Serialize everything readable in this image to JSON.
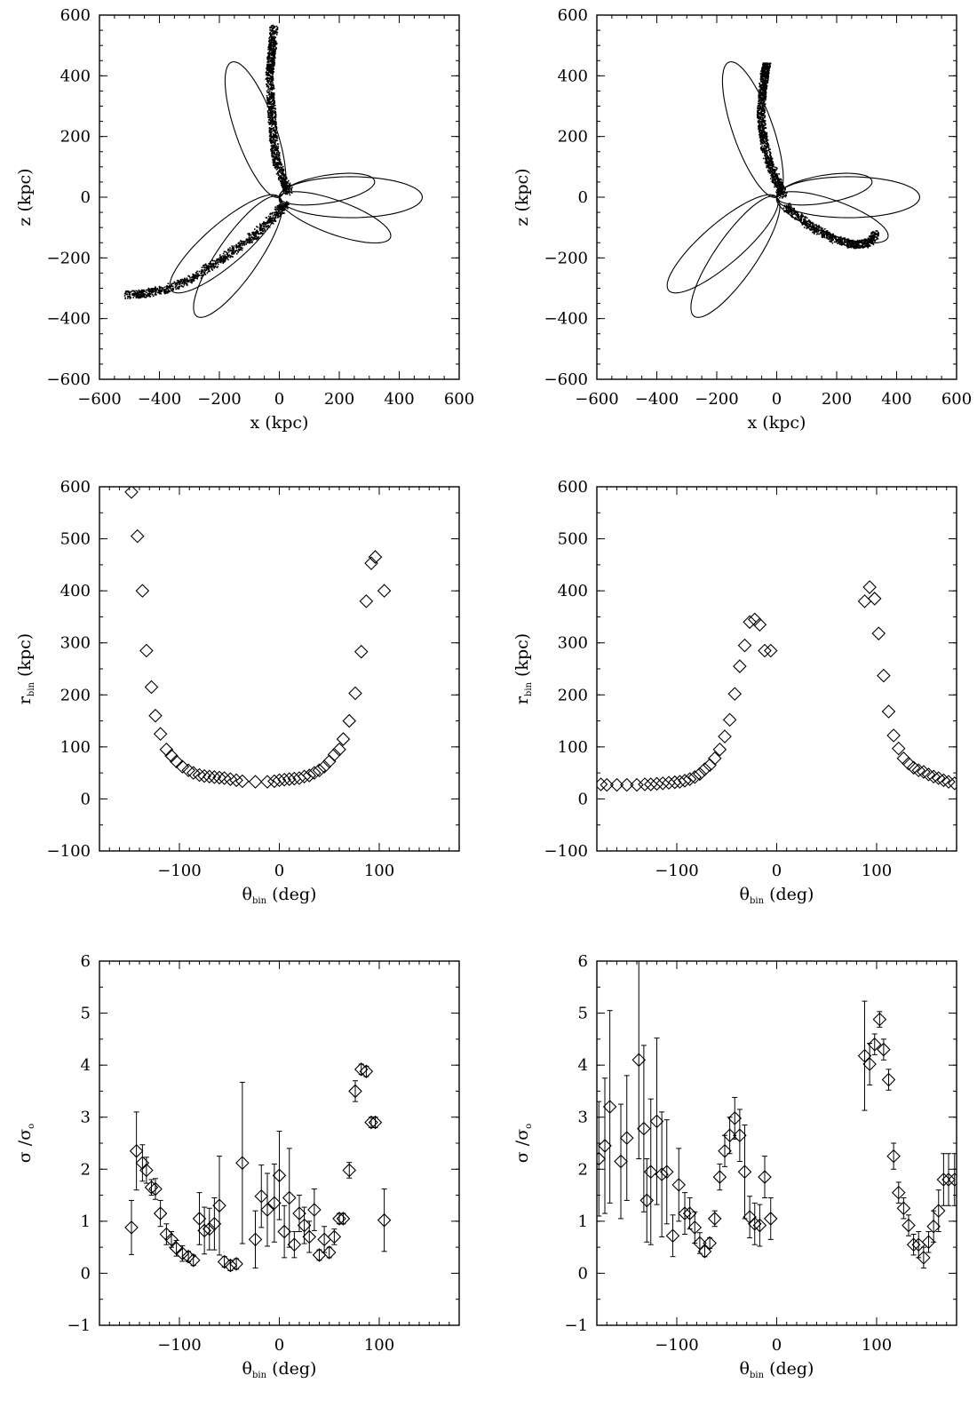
{
  "chart_data": [
    {
      "id": "p1",
      "type": "scatter",
      "xlabel": "x (kpc)",
      "ylabel": "z (kpc)",
      "xlim": [
        -600,
        600
      ],
      "ylim": [
        -600,
        600
      ],
      "xticks": [
        "-600",
        "-400",
        "-200",
        "0",
        "200",
        "400",
        "600"
      ],
      "yticks": [
        "-600",
        "-400",
        "-200",
        "0",
        "200",
        "400",
        "600"
      ],
      "orbit_apocenters": [
        [
          -150,
          420
        ],
        [
          450,
          0
        ],
        [
          -260,
          -370
        ],
        [
          350,
          -125
        ],
        [
          -340,
          -290
        ],
        [
          300,
          50
        ]
      ],
      "stream_path": [
        [
          30,
          20
        ],
        [
          10,
          60
        ],
        [
          -10,
          120
        ],
        [
          -20,
          180
        ],
        [
          -25,
          250
        ],
        [
          -30,
          320
        ],
        [
          -35,
          400
        ],
        [
          -30,
          450
        ],
        [
          -25,
          500
        ],
        [
          -20,
          560
        ],
        [
          20,
          -20
        ],
        [
          -20,
          -60
        ],
        [
          -80,
          -120
        ],
        [
          -150,
          -170
        ],
        [
          -220,
          -220
        ],
        [
          -300,
          -270
        ],
        [
          -380,
          -300
        ],
        [
          -450,
          -315
        ],
        [
          -510,
          -320
        ]
      ]
    },
    {
      "id": "p2",
      "type": "scatter",
      "xlabel": "x (kpc)",
      "ylabel": "z (kpc)",
      "xlim": [
        -600,
        600
      ],
      "ylim": [
        -600,
        600
      ],
      "xticks": [
        "-600",
        "-400",
        "-200",
        "0",
        "200",
        "400",
        "600"
      ],
      "yticks": [
        "-600",
        "-400",
        "-200",
        "0",
        "200",
        "400",
        "600"
      ],
      "orbit_apocenters": [
        [
          -150,
          420
        ],
        [
          450,
          0
        ],
        [
          -260,
          -370
        ],
        [
          350,
          -125
        ],
        [
          -340,
          -290
        ],
        [
          300,
          50
        ]
      ],
      "stream_path": [
        [
          20,
          10
        ],
        [
          0,
          50
        ],
        [
          -20,
          100
        ],
        [
          -40,
          160
        ],
        [
          -50,
          220
        ],
        [
          -55,
          280
        ],
        [
          -50,
          340
        ],
        [
          -45,
          390
        ],
        [
          -40,
          420
        ],
        [
          -35,
          440
        ],
        [
          30,
          -30
        ],
        [
          80,
          -70
        ],
        [
          140,
          -110
        ],
        [
          200,
          -140
        ],
        [
          260,
          -155
        ],
        [
          300,
          -150
        ],
        [
          330,
          -120
        ]
      ]
    },
    {
      "id": "p3",
      "type": "scatter",
      "xlabel": "θ",
      "xlabel_sub": "bin",
      "xlabel_rest": " (deg)",
      "ylabel": "r",
      "ylabel_sub": "bin",
      "ylabel_rest": " (kpc)",
      "xlim": [
        -180,
        180
      ],
      "ylim": [
        -100,
        600
      ],
      "xticks": [
        "-100",
        "0",
        "100"
      ],
      "yticks": [
        "-100",
        "0",
        "100",
        "200",
        "300",
        "400",
        "500",
        "600"
      ],
      "x": [
        -148,
        -142,
        -137,
        -133,
        -128,
        -124,
        -119,
        -113,
        -108,
        -103,
        -97,
        -91,
        -86,
        -80,
        -75,
        -70,
        -65,
        -60,
        -55,
        -49,
        -43,
        -37,
        -24,
        -12,
        -5,
        0,
        5,
        10,
        15,
        20,
        25,
        30,
        35,
        40,
        45,
        50,
        55,
        60,
        64,
        70,
        76,
        82,
        87,
        92,
        96,
        105
      ],
      "y": [
        590,
        505,
        400,
        285,
        215,
        160,
        125,
        95,
        83,
        72,
        62,
        55,
        50,
        46,
        44,
        43,
        42,
        41,
        40,
        38,
        36,
        34,
        33,
        33,
        34,
        36,
        37,
        38,
        39,
        40,
        43,
        45,
        50,
        55,
        62,
        72,
        85,
        95,
        115,
        150,
        203,
        283,
        380,
        453,
        465,
        400
      ]
    },
    {
      "id": "p4",
      "type": "scatter",
      "xlabel": "θ",
      "xlabel_sub": "bin",
      "xlabel_rest": " (deg)",
      "ylabel": "r",
      "ylabel_sub": "bin",
      "ylabel_rest": " (kpc)",
      "xlim": [
        -180,
        180
      ],
      "ylim": [
        -100,
        600
      ],
      "xticks": [
        "-100",
        "0",
        "100"
      ],
      "yticks": [
        "-100",
        "0",
        "100",
        "200",
        "300",
        "400",
        "500",
        "600"
      ],
      "x": [
        -176,
        -170,
        -160,
        -150,
        -140,
        -132,
        -126,
        -120,
        -114,
        -108,
        -102,
        -97,
        -92,
        -87,
        -82,
        -77,
        -72,
        -67,
        -62,
        -57,
        -52,
        -47,
        -42,
        -37,
        -32,
        -27,
        -22,
        -17,
        -12,
        -6,
        88,
        93,
        98,
        102,
        107,
        112,
        117,
        122,
        127,
        132,
        137,
        142,
        147,
        152,
        157,
        162,
        167,
        172,
        178
      ],
      "y": [
        28,
        27,
        27,
        27,
        27,
        28,
        28,
        29,
        30,
        31,
        32,
        33,
        35,
        38,
        42,
        48,
        57,
        65,
        78,
        95,
        120,
        152,
        202,
        255,
        295,
        340,
        345,
        335,
        285,
        285,
        380,
        407,
        385,
        318,
        237,
        168,
        122,
        97,
        78,
        68,
        60,
        55,
        52,
        47,
        43,
        40,
        36,
        33,
        30
      ]
    },
    {
      "id": "p5",
      "type": "scatter",
      "xlabel": "θ",
      "xlabel_sub": "bin",
      "xlabel_rest": " (deg)",
      "ylabel": "σ /σ",
      "ylabel_sub": "o",
      "ylabel_rest": "",
      "xlim": [
        -180,
        180
      ],
      "ylim": [
        -1,
        6
      ],
      "xticks": [
        "-100",
        "0",
        "100"
      ],
      "yticks": [
        "-1",
        "0",
        "1",
        "2",
        "3",
        "4",
        "5",
        "6"
      ],
      "x": [
        -148,
        -143,
        -137,
        -133,
        -128,
        -124,
        -119,
        -113,
        -108,
        -103,
        -97,
        -91,
        -86,
        -80,
        -75,
        -70,
        -65,
        -60,
        -55,
        -49,
        -43,
        -37,
        -24,
        -18,
        -12,
        -5,
        0,
        5,
        10,
        15,
        20,
        25,
        30,
        35,
        40,
        45,
        50,
        55,
        60,
        64,
        70,
        76,
        82,
        87,
        92,
        96,
        105
      ],
      "y": [
        0.88,
        2.35,
        2.12,
        1.98,
        1.65,
        1.62,
        1.15,
        0.75,
        0.65,
        0.48,
        0.38,
        0.32,
        0.25,
        1.05,
        0.82,
        0.85,
        0.95,
        1.3,
        0.22,
        0.15,
        0.18,
        2.12,
        0.65,
        1.48,
        1.22,
        1.35,
        1.88,
        0.8,
        1.45,
        0.55,
        1.15,
        0.92,
        0.7,
        1.22,
        0.35,
        0.65,
        0.4,
        0.7,
        1.05,
        1.05,
        1.98,
        3.5,
        3.92,
        3.88,
        2.9,
        2.9,
        1.02
      ],
      "err": [
        0.52,
        0.75,
        0.35,
        0.25,
        0.15,
        0.2,
        0.25,
        0.2,
        0.15,
        0.15,
        0.15,
        0.1,
        0.1,
        0.5,
        0.45,
        0.4,
        0.5,
        0.95,
        0.1,
        0.1,
        0.1,
        1.55,
        0.55,
        0.6,
        0.7,
        0.75,
        0.85,
        0.5,
        0.95,
        0.25,
        0.35,
        0.35,
        0.3,
        0.4,
        0.1,
        0.25,
        0.1,
        0.15,
        0.1,
        0.1,
        0.15,
        0.2,
        0.1,
        0.1,
        0.1,
        0.1,
        0.6
      ]
    },
    {
      "id": "p6",
      "type": "scatter",
      "xlabel": "θ",
      "xlabel_sub": "bin",
      "xlabel_rest": " (deg)",
      "ylabel": "σ /σ",
      "ylabel_sub": "o",
      "ylabel_rest": "",
      "xlim": [
        -180,
        180
      ],
      "ylim": [
        -1,
        6
      ],
      "xticks": [
        "-100",
        "0",
        "100"
      ],
      "yticks": [
        "-1",
        "0",
        "1",
        "2",
        "3",
        "4",
        "5",
        "6"
      ],
      "x": [
        -178,
        -172,
        -167,
        -156,
        -150,
        -138,
        -133,
        -130,
        -126,
        -120,
        -115,
        -110,
        -104,
        -98,
        -92,
        -87,
        -82,
        -77,
        -72,
        -67,
        -62,
        -57,
        -52,
        -47,
        -42,
        -37,
        -32,
        -27,
        -22,
        -17,
        -12,
        -6,
        88,
        93,
        98,
        103,
        107,
        112,
        117,
        122,
        127,
        132,
        137,
        142,
        147,
        152,
        157,
        162,
        167,
        172,
        178
      ],
      "y": [
        2.2,
        2.45,
        3.2,
        2.15,
        2.6,
        4.1,
        2.78,
        1.4,
        1.95,
        2.92,
        1.9,
        1.95,
        0.72,
        1.7,
        1.15,
        1.15,
        0.88,
        0.58,
        0.42,
        0.58,
        1.05,
        1.85,
        2.35,
        2.65,
        2.98,
        2.65,
        1.95,
        1.08,
        0.95,
        0.92,
        1.85,
        1.05,
        4.18,
        4.02,
        4.4,
        4.88,
        4.3,
        3.72,
        2.25,
        1.55,
        1.25,
        0.92,
        0.55,
        0.55,
        0.3,
        0.6,
        0.9,
        1.2,
        1.8,
        1.8,
        1.8
      ],
      "err": [
        1.1,
        1.3,
        1.85,
        1.1,
        1.2,
        1.9,
        1.6,
        0.8,
        1.4,
        1.6,
        1.2,
        1.0,
        0.4,
        0.7,
        0.4,
        0.3,
        0.3,
        0.2,
        0.1,
        0.1,
        0.15,
        0.25,
        0.3,
        0.35,
        0.4,
        0.5,
        0.9,
        0.4,
        0.4,
        0.4,
        0.4,
        0.4,
        1.05,
        0.4,
        0.2,
        0.15,
        0.2,
        0.2,
        0.25,
        0.2,
        0.2,
        0.2,
        0.2,
        0.25,
        0.2,
        0.2,
        0.3,
        0.4,
        0.5,
        0.5,
        0.5
      ]
    }
  ]
}
